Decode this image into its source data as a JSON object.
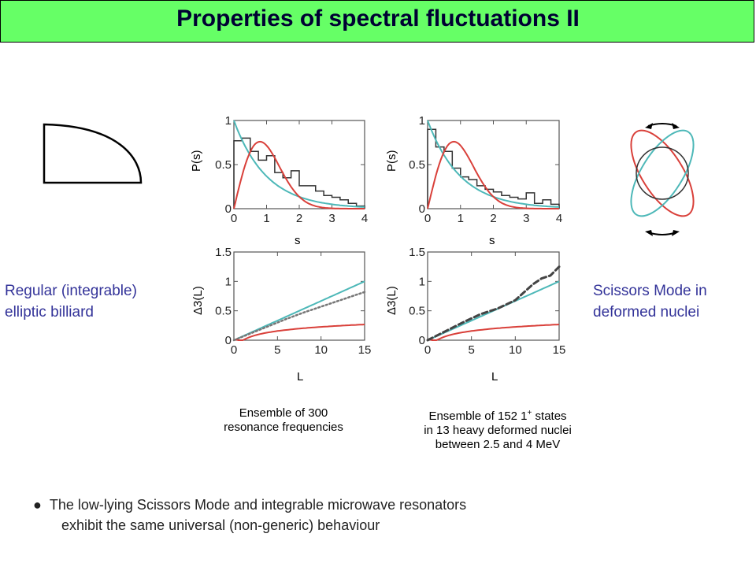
{
  "title": "Properties of spectral fluctuations II",
  "left_label": {
    "line1": "Regular (integrable)",
    "line2": "elliptic billiard"
  },
  "right_label": {
    "line1": "Scissors Mode in",
    "line2": "deformed nuclei"
  },
  "captions": {
    "left": {
      "line1": "Ensemble of 300",
      "line2": "resonance frequencies"
    },
    "right": {
      "line1_pre": "Ensemble of 152 1",
      "line1_sup": "+",
      "line1_post": " states",
      "line2": "in 13 heavy deformed nuclei",
      "line3": "between 2.5 and 4 MeV"
    }
  },
  "note": {
    "bullet": "●",
    "line1": "The low-lying Scissors Mode and integrable microwave resonators",
    "line2": "exhibit the same universal (non-generic) behaviour"
  },
  "colors": {
    "poisson": "#4db8b8",
    "goe": "#d9403a",
    "title_bg": "#66ff66",
    "label": "#333399"
  },
  "chart_data": [
    {
      "id": "ps-left",
      "type": "line",
      "xlabel": "s",
      "ylabel": "P(s)",
      "xlim": [
        0,
        4
      ],
      "ylim": [
        0,
        1
      ],
      "xticks": [
        0,
        1,
        2,
        3,
        4
      ],
      "yticks": [
        0,
        0.5,
        1
      ],
      "xtick_labels": [
        "0",
        "1",
        "2",
        "3",
        "4"
      ],
      "ytick_labels": [
        "0",
        "0.5",
        "1"
      ],
      "histogram": {
        "bin_width": 0.25,
        "values": [
          0.77,
          0.8,
          0.65,
          0.55,
          0.6,
          0.41,
          0.35,
          0.43,
          0.26,
          0.26,
          0.2,
          0.15,
          0.13,
          0.1,
          0.06,
          0.03
        ]
      },
      "series": [
        "poisson",
        "goe"
      ]
    },
    {
      "id": "ps-right",
      "type": "line",
      "xlabel": "s",
      "ylabel": "P(s)",
      "xlim": [
        0,
        4
      ],
      "ylim": [
        0,
        1
      ],
      "xticks": [
        0,
        1,
        2,
        3,
        4
      ],
      "yticks": [
        0,
        0.5,
        1
      ],
      "xtick_labels": [
        "0",
        "1",
        "2",
        "3",
        "4"
      ],
      "ytick_labels": [
        "0",
        "0.5",
        "1"
      ],
      "histogram": {
        "bin_width": 0.25,
        "values": [
          0.9,
          0.7,
          0.65,
          0.46,
          0.36,
          0.33,
          0.26,
          0.22,
          0.19,
          0.15,
          0.13,
          0.11,
          0.18,
          0.06,
          0.1,
          0.05
        ]
      },
      "series": [
        "poisson",
        "goe"
      ]
    },
    {
      "id": "d3-left",
      "type": "line",
      "xlabel": "L",
      "ylabel": "Δ3(L)",
      "xlim": [
        0,
        15
      ],
      "ylim": [
        0,
        1.5
      ],
      "xticks": [
        0,
        5,
        10,
        15
      ],
      "yticks": [
        0,
        0.5,
        1,
        1.5
      ],
      "xtick_labels": [
        "0",
        "5",
        "10",
        "15"
      ],
      "ytick_labels": [
        "0",
        "0.5",
        "1",
        "1.5"
      ],
      "data": {
        "L": [
          0,
          2,
          4,
          6,
          8,
          10,
          12,
          14,
          15
        ],
        "values": [
          0,
          0.12,
          0.24,
          0.36,
          0.47,
          0.57,
          0.67,
          0.77,
          0.82
        ]
      },
      "series": [
        "poisson",
        "goe",
        "data"
      ]
    },
    {
      "id": "d3-right",
      "type": "line",
      "xlabel": "L",
      "ylabel": "Δ3(L)",
      "xlim": [
        0,
        15
      ],
      "ylim": [
        0,
        1.5
      ],
      "xticks": [
        0,
        5,
        10,
        15
      ],
      "yticks": [
        0,
        0.5,
        1,
        1.5
      ],
      "xtick_labels": [
        "0",
        "5",
        "10",
        "15"
      ],
      "ytick_labels": [
        "0",
        "0.5",
        "1",
        "1.5"
      ],
      "data": {
        "L": [
          0,
          2,
          4,
          6,
          8,
          10,
          12,
          13,
          14,
          15
        ],
        "values": [
          0,
          0.15,
          0.3,
          0.44,
          0.54,
          0.68,
          0.95,
          1.05,
          1.1,
          1.25
        ]
      },
      "series": [
        "poisson",
        "goe",
        "data"
      ]
    }
  ]
}
